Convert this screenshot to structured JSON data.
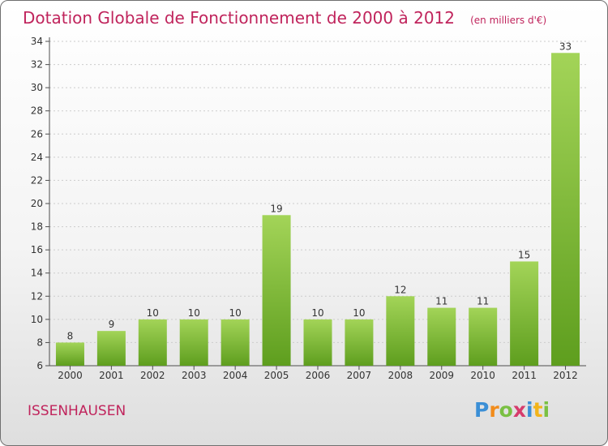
{
  "header": {
    "title": "Dotation Globale de Fonctionnement de 2000 à 2012",
    "subtitle": "(en milliers d'€)"
  },
  "commune": "ISSENHAUSEN",
  "logo": {
    "text": "Proxiti",
    "letters": [
      "P",
      "r",
      "o",
      "x",
      "i",
      "t",
      "i"
    ]
  },
  "colors": {
    "title": "#c0245c",
    "bar_top": "#a3d458",
    "bar_bottom": "#5e9e1e",
    "axis": "#4d4d4d",
    "grid": "#cccccc"
  },
  "chart_data": {
    "type": "bar",
    "categories": [
      "2000",
      "2001",
      "2002",
      "2003",
      "2004",
      "2005",
      "2006",
      "2007",
      "2008",
      "2009",
      "2010",
      "2011",
      "2012"
    ],
    "values": [
      8,
      9,
      10,
      10,
      10,
      19,
      10,
      10,
      12,
      11,
      11,
      15,
      33
    ],
    "data_labels": [
      "8",
      "9",
      "10",
      "10",
      "10",
      "19",
      "10",
      "10",
      "12",
      "11",
      "11",
      "15",
      "33"
    ],
    "ylim": [
      6,
      34
    ],
    "yticks": [
      "6",
      "8",
      "10",
      "12",
      "14",
      "16",
      "18",
      "20",
      "22",
      "24",
      "26",
      "28",
      "30",
      "32",
      "34"
    ],
    "xlabel": "",
    "ylabel": "",
    "grid": true
  }
}
